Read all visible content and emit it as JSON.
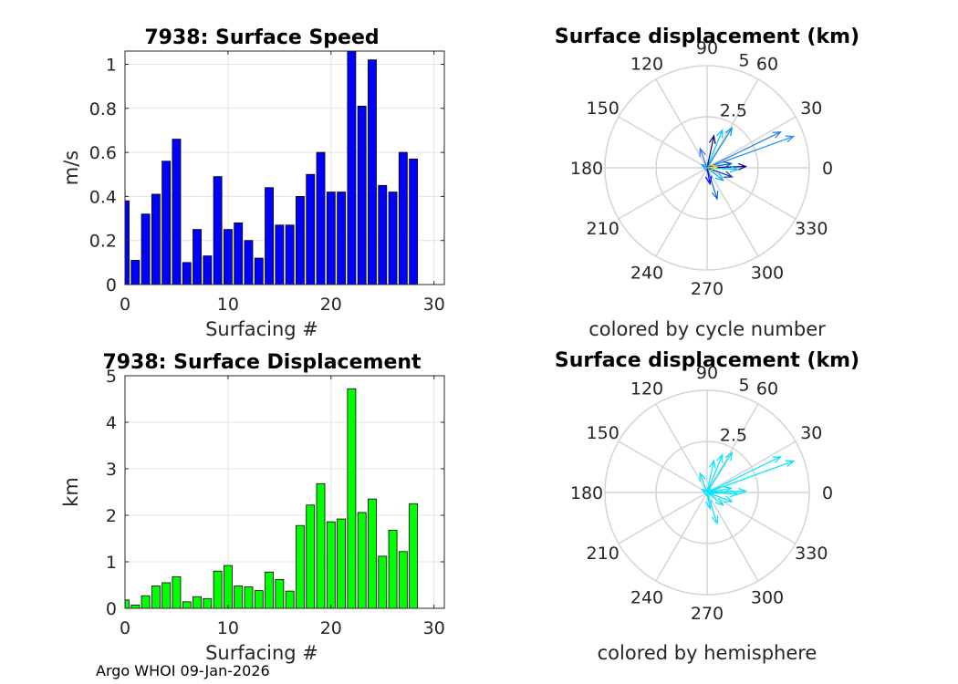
{
  "footer": "Argo WHOI 09-Jan-2026",
  "chart_data": [
    {
      "type": "bar",
      "title": "7938: Surface Speed",
      "xlabel": "Surfacing #",
      "ylabel": "m/s",
      "xlim": [
        0,
        31
      ],
      "ylim": [
        0,
        1.06
      ],
      "xticks": [
        "0",
        "10",
        "20",
        "30"
      ],
      "yticks": [
        "0",
        "0.2",
        "0.4",
        "0.6",
        "0.8",
        "1"
      ],
      "grid": true,
      "color": "#0000ff",
      "x": [
        0,
        1,
        2,
        3,
        4,
        5,
        6,
        7,
        8,
        9,
        10,
        11,
        12,
        13,
        14,
        15,
        16,
        17,
        18,
        19,
        20,
        21,
        22,
        23,
        24,
        25,
        26,
        27,
        28
      ],
      "values": [
        0.38,
        0.11,
        0.32,
        0.41,
        0.56,
        0.66,
        0.1,
        0.25,
        0.13,
        0.49,
        0.25,
        0.28,
        0.2,
        0.12,
        0.44,
        0.27,
        0.27,
        0.4,
        0.5,
        0.6,
        0.42,
        0.42,
        1.06,
        0.81,
        1.02,
        0.45,
        0.42,
        0.6,
        0.57
      ]
    },
    {
      "type": "bar",
      "title": "7938: Surface Displacement",
      "xlabel": "Surfacing #",
      "ylabel": "km",
      "xlim": [
        0,
        31
      ],
      "ylim": [
        0,
        5
      ],
      "xticks": [
        "0",
        "10",
        "20",
        "30"
      ],
      "yticks": [
        "0",
        "1",
        "2",
        "3",
        "4",
        "5"
      ],
      "grid": true,
      "color": "#00ff00",
      "x": [
        0,
        1,
        2,
        3,
        4,
        5,
        6,
        7,
        8,
        9,
        10,
        11,
        12,
        13,
        14,
        15,
        16,
        17,
        18,
        19,
        20,
        21,
        22,
        23,
        24,
        25,
        26,
        27,
        28
      ],
      "values": [
        0.18,
        0.07,
        0.27,
        0.48,
        0.55,
        0.68,
        0.14,
        0.25,
        0.21,
        0.8,
        0.92,
        0.48,
        0.46,
        0.38,
        0.78,
        0.62,
        0.37,
        1.78,
        2.22,
        2.68,
        1.86,
        1.92,
        4.72,
        2.06,
        2.35,
        1.12,
        1.68,
        1.22,
        2.25
      ]
    },
    {
      "type": "polar",
      "title": "Surface displacement (km)",
      "caption": "colored by cycle number",
      "rmax": 5,
      "rticks": [
        "2.5",
        "5"
      ],
      "angle_ticks": [
        "0",
        "30",
        "60",
        "90",
        "120",
        "150",
        "180",
        "210",
        "240",
        "270",
        "300",
        "330"
      ],
      "vectors": [
        {
          "angle_deg": 20,
          "r": 4.5,
          "color": "#1e90ff"
        },
        {
          "angle_deg": 26,
          "r": 4.0,
          "color": "#1e7fd8"
        },
        {
          "angle_deg": 68,
          "r": 2.0,
          "color": "#00c8ff"
        },
        {
          "angle_deg": 58,
          "r": 2.3,
          "color": "#0090e0"
        },
        {
          "angle_deg": 78,
          "r": 1.6,
          "color": "#000080"
        },
        {
          "angle_deg": 110,
          "r": 1.0,
          "color": "#3a6bff"
        },
        {
          "angle_deg": 2,
          "r": 1.9,
          "color": "#0000a0"
        },
        {
          "angle_deg": -3,
          "r": 1.5,
          "color": "#00c0ff"
        },
        {
          "angle_deg": 10,
          "r": 1.2,
          "color": "#0050c0"
        },
        {
          "angle_deg": -20,
          "r": 1.3,
          "color": "#0038b0"
        },
        {
          "angle_deg": -38,
          "r": 1.0,
          "color": "#00a8ff"
        },
        {
          "angle_deg": -72,
          "r": 1.6,
          "color": "#0070e0"
        },
        {
          "angle_deg": -80,
          "r": 0.8,
          "color": "#0000ff"
        },
        {
          "angle_deg": 150,
          "r": 0.3,
          "color": "#00aaff"
        },
        {
          "angle_deg": 5,
          "r": 0.5,
          "color": "#ffdd00"
        }
      ]
    },
    {
      "type": "polar",
      "title": "Surface displacement (km)",
      "caption": "colored by hemisphere",
      "rmax": 5,
      "rticks": [
        "2.5",
        "5"
      ],
      "angle_ticks": [
        "0",
        "30",
        "60",
        "90",
        "120",
        "150",
        "180",
        "210",
        "240",
        "270",
        "300",
        "330"
      ],
      "vectors": [
        {
          "angle_deg": 20,
          "r": 4.5,
          "color": "#00e5ff"
        },
        {
          "angle_deg": 26,
          "r": 4.0,
          "color": "#00e5ff"
        },
        {
          "angle_deg": 68,
          "r": 2.0,
          "color": "#00e5ff"
        },
        {
          "angle_deg": 58,
          "r": 2.3,
          "color": "#00e5ff"
        },
        {
          "angle_deg": 78,
          "r": 1.6,
          "color": "#00e5ff"
        },
        {
          "angle_deg": 110,
          "r": 1.0,
          "color": "#00e5ff"
        },
        {
          "angle_deg": 2,
          "r": 1.9,
          "color": "#00e5ff"
        },
        {
          "angle_deg": -3,
          "r": 1.5,
          "color": "#00e5ff"
        },
        {
          "angle_deg": 10,
          "r": 1.2,
          "color": "#00e5ff"
        },
        {
          "angle_deg": -20,
          "r": 1.3,
          "color": "#00e5ff"
        },
        {
          "angle_deg": -38,
          "r": 1.0,
          "color": "#00e5ff"
        },
        {
          "angle_deg": -72,
          "r": 1.6,
          "color": "#00e5ff"
        },
        {
          "angle_deg": -80,
          "r": 0.8,
          "color": "#00e5ff"
        },
        {
          "angle_deg": 150,
          "r": 0.3,
          "color": "#00e5ff"
        },
        {
          "angle_deg": 5,
          "r": 0.5,
          "color": "#00e5ff"
        }
      ]
    }
  ]
}
